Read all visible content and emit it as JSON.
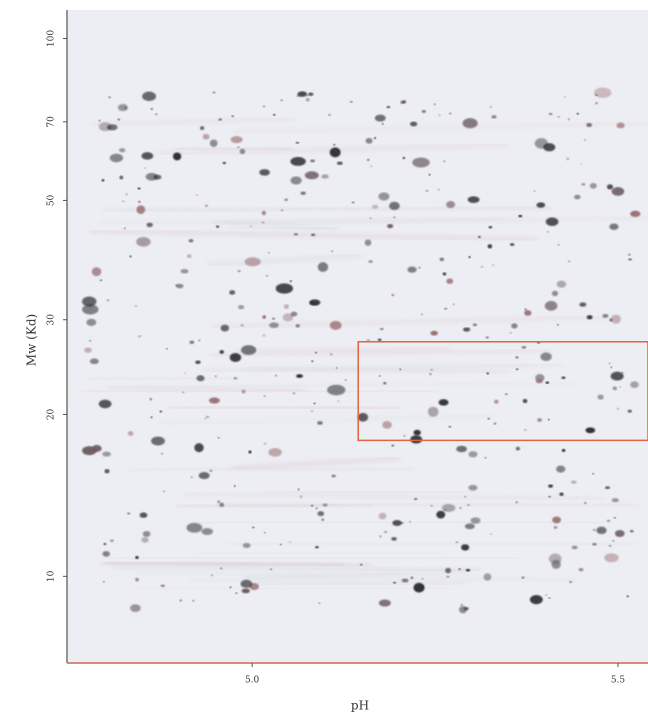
{
  "chart_data": {
    "type": "gel",
    "xlabel": "pH",
    "ylabel": "Mw (Kd)",
    "xlim": [
      4.747,
      5.541
    ],
    "xticks": [
      {
        "value": 5,
        "label": "5.0"
      },
      5.5
    ],
    "ylim": [
      6.9,
      113
    ],
    "yticks": [
      10,
      20,
      30,
      50,
      70,
      100
    ],
    "ylog": true,
    "highlight": {
      "xlim": [
        5.145,
        5.541
      ],
      "ylim": [
        17.9,
        27.3
      ],
      "color": "#e0643c"
    }
  }
}
